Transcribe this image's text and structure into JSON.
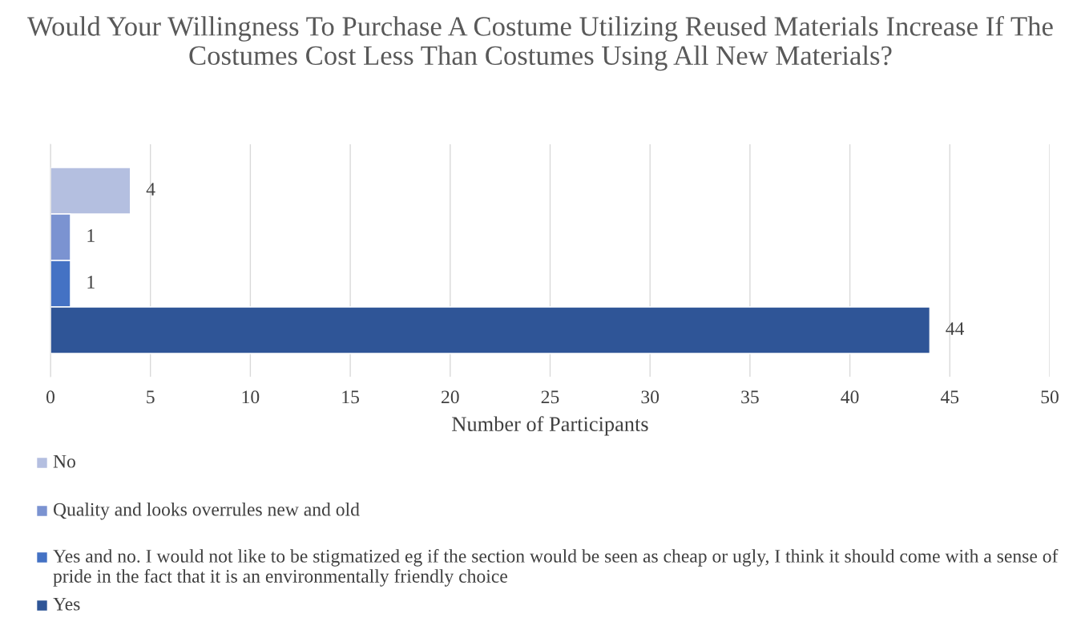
{
  "chart_data": {
    "type": "bar",
    "orientation": "horizontal",
    "title": "Would Your Willingness To Purchase A Costume Utilizing Reused Materials Increase If The Costumes Cost Less Than Costumes Using All New Materials?",
    "xlabel": "Number of Participants",
    "categories": [
      null
    ],
    "series": [
      {
        "name": "No",
        "color": "#b4bfe0",
        "values": [
          4
        ]
      },
      {
        "name": "Quality and looks overrules new and old",
        "color": "#7b93d1",
        "values": [
          1
        ]
      },
      {
        "name": "Yes and no. I would not like to be stigmatized eg if the section would be seen as cheap or ugly, I think it should come with a sense of pride in the fact that it is an environmentally friendly choice",
        "color": "#4472c4",
        "values": [
          1
        ]
      },
      {
        "name": "Yes",
        "color": "#2f5597",
        "values": [
          44
        ]
      }
    ],
    "xlim": [
      0,
      50
    ],
    "xticks": [
      0,
      5,
      10,
      15,
      20,
      25,
      30,
      35,
      40,
      45,
      50
    ],
    "grid": "x",
    "legend": "bottom",
    "data_labels": true,
    "tick_labels": "x"
  }
}
